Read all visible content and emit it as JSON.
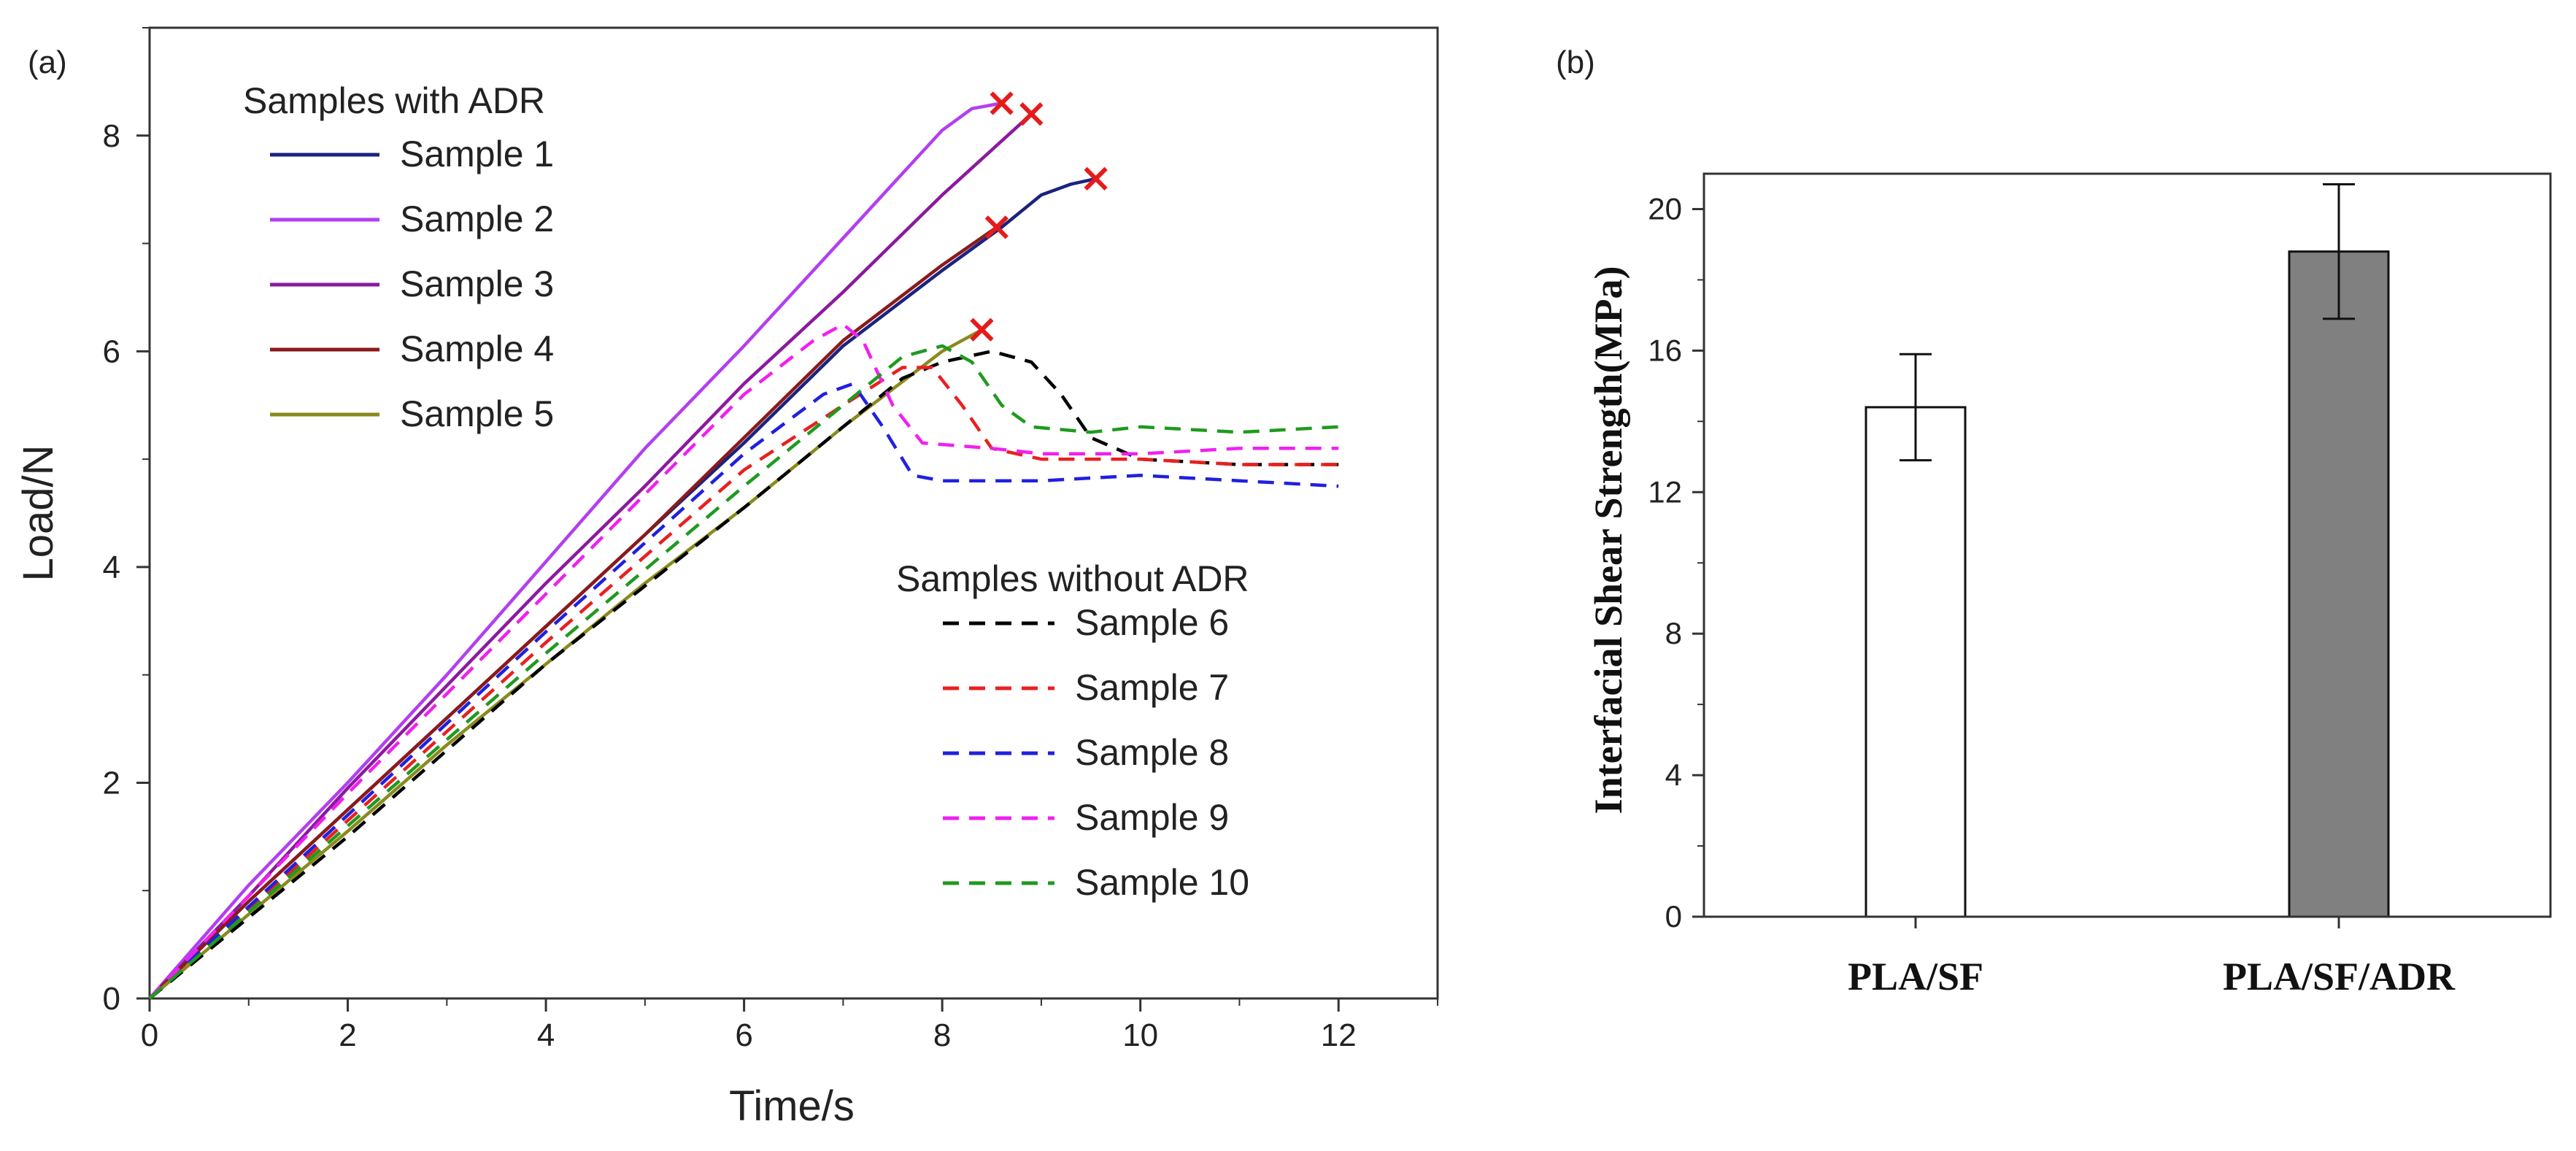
{
  "chart_data": [
    {
      "type": "line",
      "panel_label": "(a)",
      "xlabel": "Time/s",
      "ylabel": "Load/N",
      "xlim": [
        0,
        13
      ],
      "ylim": [
        0,
        9
      ],
      "xticks": [
        "0",
        "2",
        "4",
        "6",
        "8",
        "10",
        "12"
      ],
      "yticks": [
        "0",
        "2",
        "4",
        "6",
        "8"
      ],
      "legend_groups": [
        {
          "title": "Samples with ADR",
          "location": "top-left"
        },
        {
          "title": "Samples without ADR",
          "location": "center-right"
        }
      ],
      "series": [
        {
          "name": "Sample 1",
          "group": 0,
          "style": "solid",
          "color": "#1a237e",
          "fracture_marker": true,
          "points": [
            [
              0,
              0
            ],
            [
              1,
              0.9
            ],
            [
              2,
              1.75
            ],
            [
              3,
              2.6
            ],
            [
              4,
              3.45
            ],
            [
              5,
              4.3
            ],
            [
              6,
              5.15
            ],
            [
              7,
              6.05
            ],
            [
              8,
              6.75
            ],
            [
              8.6,
              7.15
            ],
            [
              9.0,
              7.45
            ],
            [
              9.3,
              7.55
            ],
            [
              9.55,
              7.6
            ]
          ]
        },
        {
          "name": "Sample 2",
          "group": 0,
          "style": "solid",
          "color": "#b23ff0",
          "fracture_marker": true,
          "points": [
            [
              0,
              0
            ],
            [
              1,
              1.05
            ],
            [
              2,
              2.0
            ],
            [
              3,
              3.0
            ],
            [
              4,
              4.05
            ],
            [
              5,
              5.1
            ],
            [
              6,
              6.05
            ],
            [
              7,
              7.05
            ],
            [
              7.6,
              7.65
            ],
            [
              8.0,
              8.05
            ],
            [
              8.3,
              8.25
            ],
            [
              8.6,
              8.3
            ]
          ]
        },
        {
          "name": "Sample 3",
          "group": 0,
          "style": "solid",
          "color": "#8b1a9e",
          "fracture_marker": true,
          "points": [
            [
              0,
              0
            ],
            [
              1,
              0.95
            ],
            [
              2,
              1.95
            ],
            [
              3,
              2.9
            ],
            [
              4,
              3.85
            ],
            [
              5,
              4.75
            ],
            [
              6,
              5.7
            ],
            [
              7,
              6.55
            ],
            [
              8,
              7.45
            ],
            [
              8.9,
              8.2
            ]
          ]
        },
        {
          "name": "Sample 4",
          "group": 0,
          "style": "solid",
          "color": "#8b1a1a",
          "fracture_marker": true,
          "points": [
            [
              0,
              0
            ],
            [
              1,
              0.9
            ],
            [
              2,
              1.75
            ],
            [
              3,
              2.6
            ],
            [
              4,
              3.45
            ],
            [
              5,
              4.3
            ],
            [
              6,
              5.2
            ],
            [
              7,
              6.1
            ],
            [
              8,
              6.8
            ],
            [
              8.55,
              7.15
            ]
          ]
        },
        {
          "name": "Sample 5",
          "group": 0,
          "style": "solid",
          "color": "#8a8a1e",
          "fracture_marker": true,
          "points": [
            [
              0,
              0
            ],
            [
              1,
              0.78
            ],
            [
              2,
              1.55
            ],
            [
              3,
              2.35
            ],
            [
              4,
              3.1
            ],
            [
              5,
              3.85
            ],
            [
              6,
              4.55
            ],
            [
              7,
              5.3
            ],
            [
              7.5,
              5.65
            ],
            [
              8,
              6.0
            ],
            [
              8.4,
              6.2
            ]
          ]
        },
        {
          "name": "Sample 6",
          "group": 1,
          "style": "dashed",
          "color": "#000000",
          "fracture_marker": false,
          "points": [
            [
              0,
              0
            ],
            [
              2,
              1.5
            ],
            [
              4,
              3.1
            ],
            [
              6,
              4.55
            ],
            [
              7,
              5.3
            ],
            [
              7.6,
              5.75
            ],
            [
              8,
              5.9
            ],
            [
              8.5,
              6.0
            ],
            [
              8.9,
              5.9
            ],
            [
              9.2,
              5.6
            ],
            [
              9.5,
              5.2
            ],
            [
              10,
              5.0
            ],
            [
              11,
              4.95
            ],
            [
              12,
              4.95
            ]
          ]
        },
        {
          "name": "Sample 7",
          "group": 1,
          "style": "dashed",
          "color": "#e82020",
          "fracture_marker": false,
          "points": [
            [
              0,
              0
            ],
            [
              2,
              1.65
            ],
            [
              4,
              3.3
            ],
            [
              6,
              4.9
            ],
            [
              7,
              5.5
            ],
            [
              7.6,
              5.85
            ],
            [
              7.9,
              5.85
            ],
            [
              8.2,
              5.5
            ],
            [
              8.5,
              5.1
            ],
            [
              9,
              5.0
            ],
            [
              10,
              5.0
            ],
            [
              11,
              4.95
            ],
            [
              12,
              4.95
            ]
          ]
        },
        {
          "name": "Sample 8",
          "group": 1,
          "style": "dashed",
          "color": "#2020e0",
          "fracture_marker": false,
          "points": [
            [
              0,
              0
            ],
            [
              2,
              1.7
            ],
            [
              4,
              3.4
            ],
            [
              6,
              5.05
            ],
            [
              6.8,
              5.6
            ],
            [
              7.1,
              5.7
            ],
            [
              7.4,
              5.3
            ],
            [
              7.7,
              4.85
            ],
            [
              8,
              4.8
            ],
            [
              9,
              4.8
            ],
            [
              10,
              4.85
            ],
            [
              11,
              4.8
            ],
            [
              12,
              4.75
            ]
          ]
        },
        {
          "name": "Sample 9",
          "group": 1,
          "style": "dashed",
          "color": "#f020f0",
          "fracture_marker": false,
          "points": [
            [
              0,
              0
            ],
            [
              2,
              1.9
            ],
            [
              4,
              3.75
            ],
            [
              6,
              5.6
            ],
            [
              6.7,
              6.1
            ],
            [
              7.0,
              6.25
            ],
            [
              7.2,
              6.1
            ],
            [
              7.5,
              5.5
            ],
            [
              7.8,
              5.15
            ],
            [
              8.5,
              5.1
            ],
            [
              9,
              5.05
            ],
            [
              10,
              5.05
            ],
            [
              11,
              5.1
            ],
            [
              12,
              5.1
            ]
          ]
        },
        {
          "name": "Sample 10",
          "group": 1,
          "style": "dashed",
          "color": "#1f9a1f",
          "fracture_marker": false,
          "points": [
            [
              0,
              0
            ],
            [
              2,
              1.6
            ],
            [
              4,
              3.2
            ],
            [
              6,
              4.75
            ],
            [
              7,
              5.5
            ],
            [
              7.6,
              5.95
            ],
            [
              8,
              6.05
            ],
            [
              8.3,
              5.9
            ],
            [
              8.6,
              5.5
            ],
            [
              8.9,
              5.3
            ],
            [
              9.5,
              5.25
            ],
            [
              10,
              5.3
            ],
            [
              11,
              5.25
            ],
            [
              12,
              5.3
            ]
          ]
        }
      ]
    },
    {
      "type": "bar",
      "panel_label": "(b)",
      "xlabel": "",
      "ylabel": "Interfacial Shear Strength(MPa)",
      "ylim": [
        0,
        21
      ],
      "yticks": [
        "0",
        "4",
        "8",
        "12",
        "16",
        "20"
      ],
      "categories": [
        "PLA/SF",
        "PLA/SF/ADR"
      ],
      "values": [
        14.4,
        18.8
      ],
      "errors": [
        1.5,
        1.9
      ],
      "bar_colors": [
        "#ffffff",
        "#808080"
      ]
    }
  ],
  "marker_color": "#e51b1b"
}
